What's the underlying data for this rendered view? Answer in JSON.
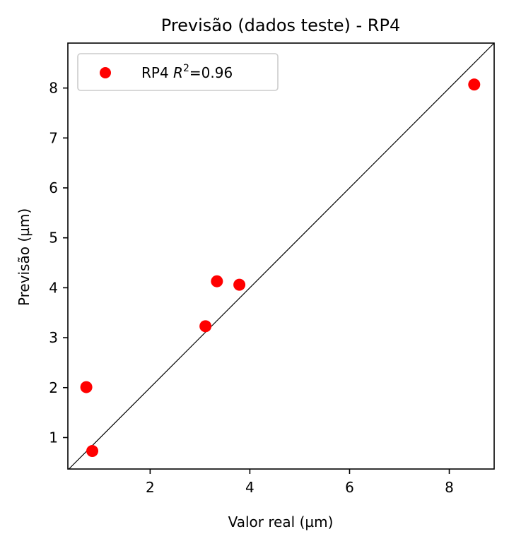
{
  "chart_data": {
    "type": "scatter",
    "title": "Previsão (dados teste) - RP4",
    "xlabel": "Valor real (µm)",
    "ylabel": "Previsão (µm)",
    "xlim": [
      0.35,
      8.9
    ],
    "ylim": [
      0.37,
      8.9
    ],
    "xticks": [
      2,
      4,
      6,
      8
    ],
    "yticks": [
      1,
      2,
      3,
      4,
      5,
      6,
      7,
      8
    ],
    "series": [
      {
        "name": "RP4",
        "legend_suffix": "=0.96",
        "color": "#ff0000",
        "points": [
          {
            "x": 0.72,
            "y": 2.01
          },
          {
            "x": 0.84,
            "y": 0.73
          },
          {
            "x": 3.11,
            "y": 3.23
          },
          {
            "x": 3.34,
            "y": 4.13
          },
          {
            "x": 3.79,
            "y": 4.06
          },
          {
            "x": 8.5,
            "y": 8.07
          }
        ]
      }
    ],
    "reference_line": "y = x",
    "grid": false,
    "legend_position": "top-left"
  }
}
